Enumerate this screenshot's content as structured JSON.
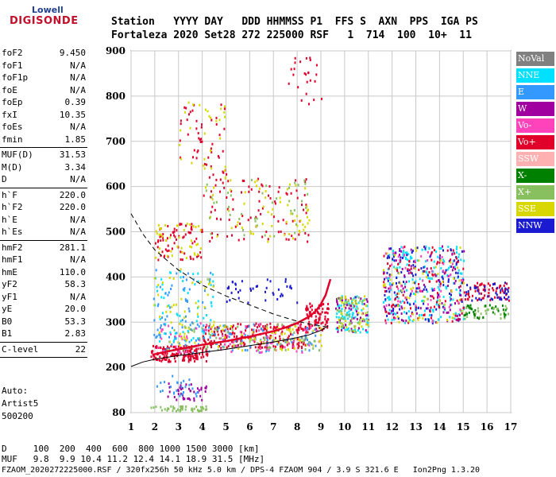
{
  "logo": {
    "top": "Lowell",
    "bottom": "DIGISONDE"
  },
  "header": {
    "line1": "Station   YYYY DAY   DDD HHMMSS P1  FFS S  AXN  PPS  IGA PS",
    "line2": "Fortaleza 2020 Set28 272 225000 RSF   1  714  100  10+  11"
  },
  "params": [
    {
      "name": "foF2",
      "value": "9.450"
    },
    {
      "name": "foF1",
      "value": "N/A"
    },
    {
      "name": "foF1p",
      "value": "N/A"
    },
    {
      "name": "foE",
      "value": "N/A"
    },
    {
      "name": "foEp",
      "value": "0.39"
    },
    {
      "name": "fxI",
      "value": "10.35"
    },
    {
      "name": "foEs",
      "value": "N/A"
    },
    {
      "name": "fmin",
      "value": "1.85"
    },
    {
      "name": "MUF(D)",
      "value": "31.53"
    },
    {
      "name": "M(D)",
      "value": "3.34"
    },
    {
      "name": "D",
      "value": "N/A"
    },
    {
      "name": "h`F",
      "value": "220.0"
    },
    {
      "name": "h`F2",
      "value": "220.0"
    },
    {
      "name": "h`E",
      "value": "N/A"
    },
    {
      "name": "h`Es",
      "value": "N/A"
    },
    {
      "name": "hmF2",
      "value": "281.1"
    },
    {
      "name": "hmF1",
      "value": "N/A"
    },
    {
      "name": "hmE",
      "value": "110.0"
    },
    {
      "name": "yF2",
      "value": "58.3"
    },
    {
      "name": "yF1",
      "value": "N/A"
    },
    {
      "name": "yE",
      "value": "20.0"
    },
    {
      "name": "B0",
      "value": "53.3"
    },
    {
      "name": "B1",
      "value": "2.83"
    },
    {
      "name": "C-level",
      "value": "22"
    }
  ],
  "auto": {
    "line1": "Auto:",
    "line2": "Artist5",
    "line3": "500200"
  },
  "legend": [
    {
      "label": "NoVal",
      "color": "#808080",
      "text": "#ffffff"
    },
    {
      "label": "NNE",
      "color": "#00e0ff",
      "text": "#ffffff"
    },
    {
      "label": "E",
      "color": "#3399ff",
      "text": "#ffffff"
    },
    {
      "label": "W",
      "color": "#a000a0",
      "text": "#ffffff"
    },
    {
      "label": "Vo-",
      "color": "#ff44bb",
      "text": "#ffffff"
    },
    {
      "label": "Vo+",
      "color": "#e0002a",
      "text": "#ffffff"
    },
    {
      "label": "SSW",
      "color": "#ffb0b0",
      "text": "#ffffff"
    },
    {
      "label": "X-",
      "color": "#008000",
      "text": "#ffffff"
    },
    {
      "label": "X+",
      "color": "#88c060",
      "text": "#ffffff"
    },
    {
      "label": "SSE",
      "color": "#d8d800",
      "text": "#ffffff"
    },
    {
      "label": "NNW",
      "color": "#1a1ad0",
      "text": "#ffffff"
    }
  ],
  "bottom": {
    "d_line": "D     100  200  400  600  800 1000 1500 3000 [km]",
    "muf_line": "MUF   9.8  9.9 10.4 11.2 12.4 14.1 18.9 31.5 [MHz]",
    "file_line": "FZAOM_2020272225000.RSF / 320fx256h 50 kHz 5.0 km / DPS-4 FZAOM 904 / 3.9 S 321.6 E   Ion2Png 1.3.20"
  },
  "chart_data": {
    "type": "scatter",
    "x_ticks": [
      "1",
      "2",
      "3",
      "4",
      "5",
      "6",
      "7",
      "8",
      "9",
      "10",
      "11",
      "12",
      "13",
      "14",
      "15",
      "16",
      "17"
    ],
    "y_ticks": [
      "80",
      "200",
      "300",
      "400",
      "500",
      "600",
      "700",
      "800",
      "900"
    ],
    "xlim": [
      1,
      17
    ],
    "y_levels": [
      80,
      200,
      300,
      400,
      500,
      600,
      700,
      800,
      900
    ],
    "grid": true,
    "traces": [
      {
        "style": "solid-red",
        "x": [
          1.9,
          2.5,
          3.0,
          3.5,
          4.0,
          5.0,
          6.0,
          7.0,
          7.5,
          8.0,
          8.5,
          8.8,
          9.0,
          9.2,
          9.4
        ],
        "y": [
          228,
          235,
          240,
          245,
          250,
          258,
          268,
          280,
          288,
          298,
          312,
          325,
          340,
          360,
          395
        ]
      },
      {
        "style": "solid-black",
        "x": [
          1.0,
          1.5,
          2.0,
          3.0,
          4.0,
          5.0,
          6.0,
          7.0,
          8.0,
          8.5,
          9.0,
          9.3
        ],
        "y": [
          202,
          212,
          218,
          226,
          233,
          240,
          248,
          256,
          266,
          272,
          282,
          292
        ]
      },
      {
        "style": "dashed-black",
        "x": [
          1.0,
          1.5,
          2.0,
          3.0,
          4.0,
          5.0,
          6.0,
          7.0,
          8.0,
          8.5,
          9.0,
          9.2
        ],
        "y": [
          540,
          495,
          460,
          415,
          382,
          358,
          338,
          318,
          302,
          296,
          292,
          290
        ]
      }
    ],
    "clusters": [
      {
        "x": [
          1.8,
          4.2
        ],
        "y": [
          215,
          250
        ],
        "color": "#e0002a",
        "n": 170
      },
      {
        "x": [
          4.0,
          8.5
        ],
        "y": [
          245,
          300
        ],
        "color": "#e0002a",
        "n": 220
      },
      {
        "x": [
          8.3,
          9.3
        ],
        "y": [
          285,
          345
        ],
        "color": "#e0002a",
        "n": 90
      },
      {
        "x": [
          2.0,
          9.0
        ],
        "y": [
          235,
          300
        ],
        "color": "#3399ff",
        "n": 110
      },
      {
        "x": [
          2.0,
          9.0
        ],
        "y": [
          235,
          300
        ],
        "color": "#ff44bb",
        "n": 80
      },
      {
        "x": [
          2.5,
          9.0
        ],
        "y": [
          240,
          300
        ],
        "color": "#d8d800",
        "n": 70
      },
      {
        "x": [
          2.5,
          9.0
        ],
        "y": [
          240,
          300
        ],
        "color": "#88c060",
        "n": 70
      },
      {
        "x": [
          1.9,
          4.5
        ],
        "y": [
          260,
          420
        ],
        "color": "#00e0ff",
        "n": 60
      },
      {
        "x": [
          1.9,
          4.5
        ],
        "y": [
          260,
          420
        ],
        "color": "#3399ff",
        "n": 50
      },
      {
        "x": [
          1.9,
          4.5
        ],
        "y": [
          260,
          420
        ],
        "color": "#d8d800",
        "n": 40
      },
      {
        "x": [
          5.0,
          8.0
        ],
        "y": [
          340,
          400
        ],
        "color": "#1a1ad0",
        "n": 40
      },
      {
        "x": [
          2.0,
          4.0
        ],
        "y": [
          440,
          520
        ],
        "color": "#e0002a",
        "n": 70
      },
      {
        "x": [
          2.0,
          4.0
        ],
        "y": [
          440,
          520
        ],
        "color": "#d8d800",
        "n": 40
      },
      {
        "x": [
          4.0,
          8.5
        ],
        "y": [
          480,
          620
        ],
        "color": "#e0002a",
        "n": 90
      },
      {
        "x": [
          4.0,
          8.5
        ],
        "y": [
          480,
          620
        ],
        "color": "#d8d800",
        "n": 60
      },
      {
        "x": [
          4.0,
          8.5
        ],
        "y": [
          480,
          620
        ],
        "color": "#88c060",
        "n": 40
      },
      {
        "x": [
          3.0,
          5.0
        ],
        "y": [
          620,
          790
        ],
        "color": "#e0002a",
        "n": 50
      },
      {
        "x": [
          3.0,
          5.0
        ],
        "y": [
          620,
          790
        ],
        "color": "#d8d800",
        "n": 30
      },
      {
        "x": [
          7.5,
          9.0
        ],
        "y": [
          780,
          890
        ],
        "color": "#e0002a",
        "n": 25
      },
      {
        "x": [
          9.6,
          11.0
        ],
        "y": [
          280,
          360
        ],
        "color": "#00e0ff",
        "n": 80
      },
      {
        "x": [
          9.6,
          11.0
        ],
        "y": [
          280,
          360
        ],
        "color": "#a000a0",
        "n": 50
      },
      {
        "x": [
          9.6,
          11.0
        ],
        "y": [
          280,
          360
        ],
        "color": "#d8d800",
        "n": 40
      },
      {
        "x": [
          9.6,
          11.0
        ],
        "y": [
          280,
          360
        ],
        "color": "#88c060",
        "n": 40
      },
      {
        "x": [
          11.6,
          15.0
        ],
        "y": [
          300,
          470
        ],
        "color": "#00e0ff",
        "n": 180
      },
      {
        "x": [
          11.6,
          15.0
        ],
        "y": [
          300,
          470
        ],
        "color": "#1a1ad0",
        "n": 120
      },
      {
        "x": [
          11.6,
          15.0
        ],
        "y": [
          300,
          470
        ],
        "color": "#e0002a",
        "n": 100
      },
      {
        "x": [
          11.6,
          15.0
        ],
        "y": [
          300,
          470
        ],
        "color": "#a000a0",
        "n": 90
      },
      {
        "x": [
          11.6,
          15.0
        ],
        "y": [
          300,
          470
        ],
        "color": "#d8d800",
        "n": 60
      },
      {
        "x": [
          11.6,
          15.0
        ],
        "y": [
          300,
          470
        ],
        "color": "#ff44bb",
        "n": 50
      },
      {
        "x": [
          15.0,
          17.0
        ],
        "y": [
          350,
          390
        ],
        "color": "#e0002a",
        "n": 70
      },
      {
        "x": [
          15.0,
          17.0
        ],
        "y": [
          350,
          390
        ],
        "color": "#1a1ad0",
        "n": 40
      },
      {
        "x": [
          15.0,
          17.0
        ],
        "y": [
          310,
          340
        ],
        "color": "#88c060",
        "n": 40
      },
      {
        "x": [
          15.0,
          17.0
        ],
        "y": [
          310,
          340
        ],
        "color": "#008000",
        "n": 30
      },
      {
        "x": [
          1.8,
          4.2
        ],
        "y": [
          85,
          100
        ],
        "color": "#88c060",
        "n": 50
      },
      {
        "x": [
          2.5,
          4.2
        ],
        "y": [
          115,
          160
        ],
        "color": "#a000a0",
        "n": 40
      },
      {
        "x": [
          2.0,
          3.8
        ],
        "y": [
          120,
          180
        ],
        "color": "#3399ff",
        "n": 25
      }
    ]
  }
}
